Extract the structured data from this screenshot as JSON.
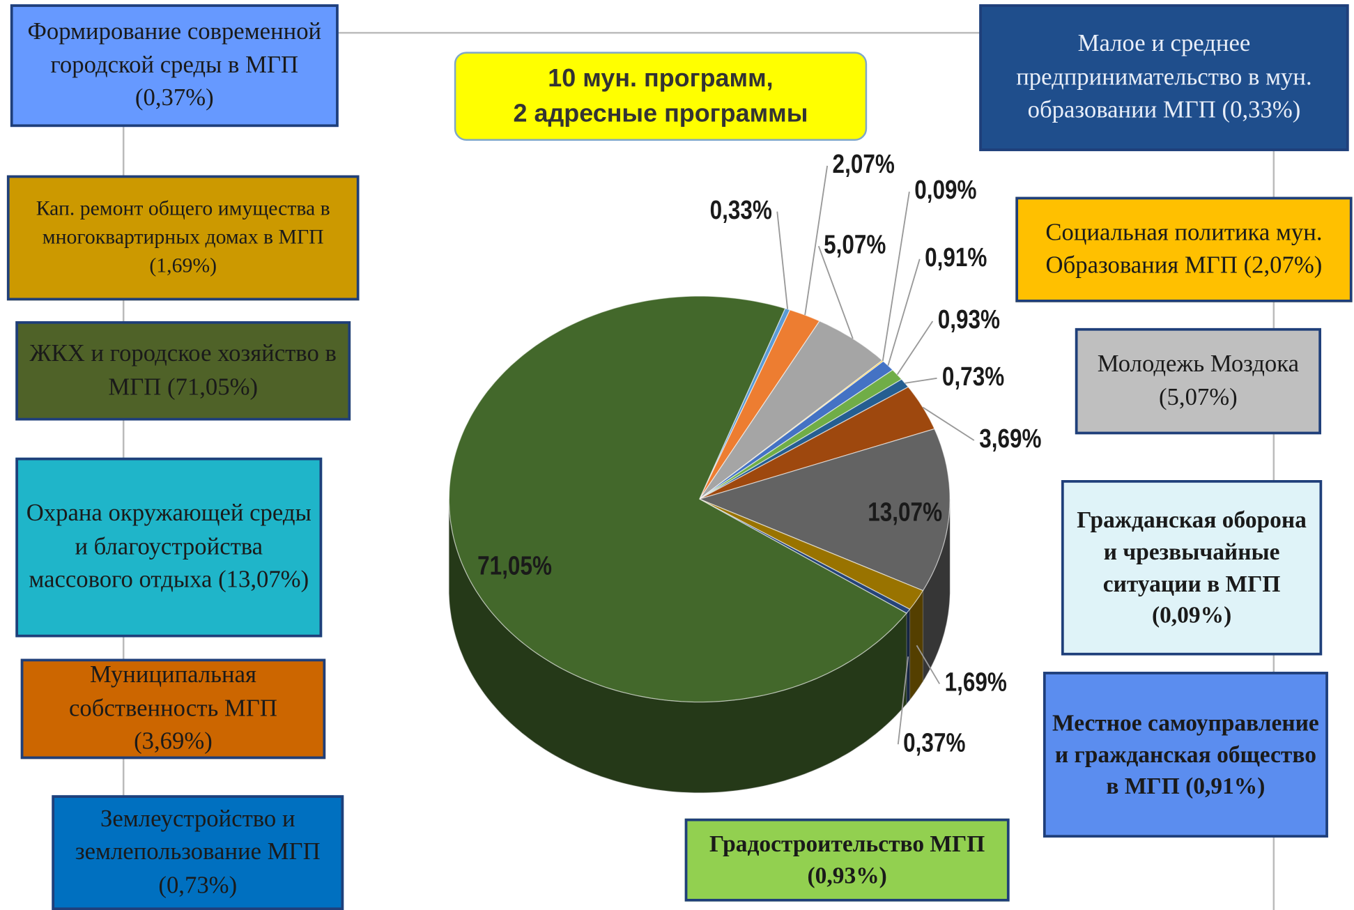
{
  "chart_data": {
    "type": "pie",
    "subtitle": [
      "10 мун. программ,",
      "2 адресные программы"
    ],
    "values": [
      0.33,
      2.07,
      5.07,
      0.09,
      0.91,
      0.93,
      0.73,
      3.69,
      13.07,
      1.69,
      0.37,
      71.05
    ],
    "value_labels": [
      "0,33%",
      "2,07%",
      "5,07%",
      "0,09%",
      "0,91%",
      "0,93%",
      "0,73%",
      "3,69%",
      "13,07%",
      "1,69%",
      "0,37%",
      "71,05%"
    ],
    "colors": [
      "#5b9bd5",
      "#ed7d31",
      "#a5a5a5",
      "#ffc000",
      "#4472c4",
      "#70ad47",
      "#255e91",
      "#9e480e",
      "#636363",
      "#997300",
      "#264478",
      "#43682b"
    ]
  },
  "boxes": [
    "Формирование современной городской среды в МГП (0,37%)",
    "Кап. ремонт общего имущества в многоквартирных домах в МГП (1,69%)",
    "ЖКХ и городское хозяйство в МГП (71,05%)",
    "Охрана окружающей среды и благоустройства массового отдыха (13,07%)",
    "Муниципальная собственность МГП (3,69%)",
    "Землеустройство и землепользование МГП (0,73%)",
    "Малое и среднее предпринимательство в мун. образовании МГП (0,33%)",
    "Социальная политика мун. Образования МГП (2,07%)",
    "Молодежь Моздока (5,07%)",
    "Гражданская оборона и чрезвычайные ситуации в МГП (0,09%)",
    "Местное самоуправление и гражданская общество в МГП (0,91%)",
    "Градостроительство МГП (0,93%)"
  ]
}
